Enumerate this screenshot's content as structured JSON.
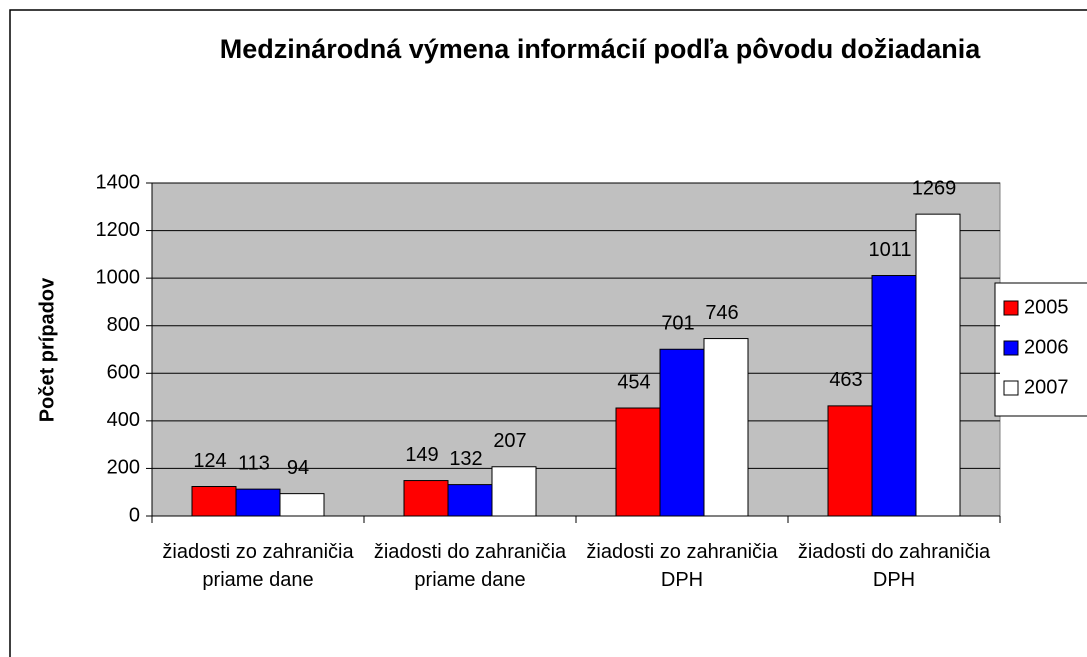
{
  "chart_data": {
    "type": "bar",
    "title": "Medzinárodná výmena informácií podľa pôvodu dožiadania",
    "y_label": "Počet prípadov",
    "categories": [
      "žiadosti zo zahraničia priame dane",
      "žiadosti do zahraničia priame dane",
      "žiadosti zo zahraničia DPH",
      "žiadosti do zahraničia DPH"
    ],
    "series": [
      {
        "name": "2005",
        "color": "#ff0000",
        "values": [
          124,
          149,
          454,
          463
        ]
      },
      {
        "name": "2006",
        "color": "#0000ff",
        "values": [
          113,
          132,
          701,
          1011
        ]
      },
      {
        "name": "2007",
        "color": "#ffffff",
        "values": [
          94,
          207,
          746,
          1269
        ]
      }
    ],
    "ylim": [
      0,
      1400
    ],
    "yticks": [
      0,
      200,
      400,
      600,
      800,
      1000,
      1200,
      1400
    ],
    "grid": true,
    "legend": "right"
  }
}
